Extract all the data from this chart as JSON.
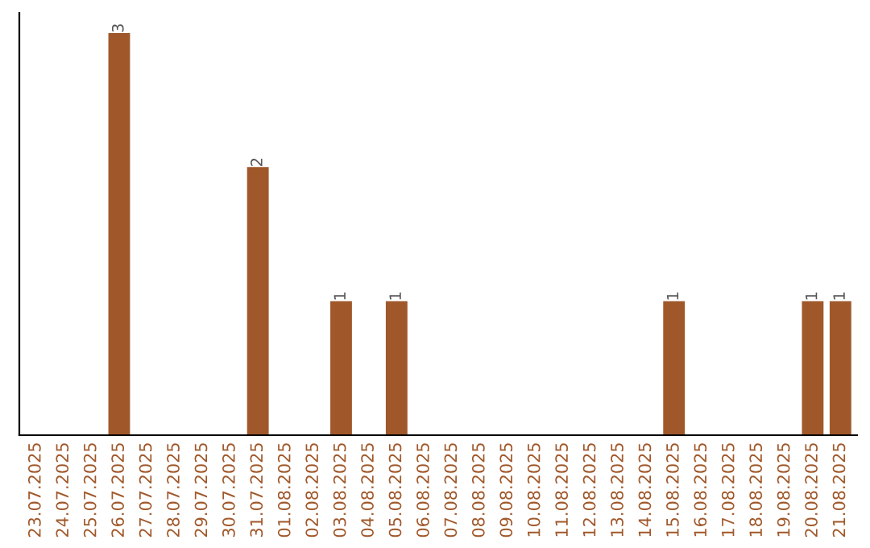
{
  "chart_data": {
    "type": "bar",
    "categories": [
      "23.07.2025",
      "24.07.2025",
      "25.07.2025",
      "26.07.2025",
      "27.07.2025",
      "28.07.2025",
      "29.07.2025",
      "30.07.2025",
      "31.07.2025",
      "01.08.2025",
      "02.08.2025",
      "03.08.2025",
      "04.08.2025",
      "05.08.2025",
      "06.08.2025",
      "07.08.2025",
      "08.08.2025",
      "09.08.2025",
      "10.08.2025",
      "11.08.2025",
      "12.08.2025",
      "13.08.2025",
      "14.08.2025",
      "15.08.2025",
      "16.08.2025",
      "17.08.2025",
      "18.08.2025",
      "19.08.2025",
      "20.08.2025",
      "21.08.2025"
    ],
    "values": [
      0,
      0,
      0,
      3,
      0,
      0,
      0,
      0,
      2,
      0,
      0,
      1,
      0,
      1,
      0,
      0,
      0,
      0,
      0,
      0,
      0,
      0,
      0,
      1,
      0,
      0,
      0,
      0,
      1,
      1
    ],
    "value_labels": [
      null,
      null,
      null,
      "3",
      null,
      null,
      null,
      null,
      "2",
      null,
      null,
      "1",
      null,
      "1",
      null,
      null,
      null,
      null,
      null,
      null,
      null,
      null,
      null,
      "1",
      null,
      null,
      null,
      null,
      "1",
      "1"
    ],
    "color": "#a0582a",
    "tick_labels": "x",
    "grid": false,
    "legend": false
  }
}
